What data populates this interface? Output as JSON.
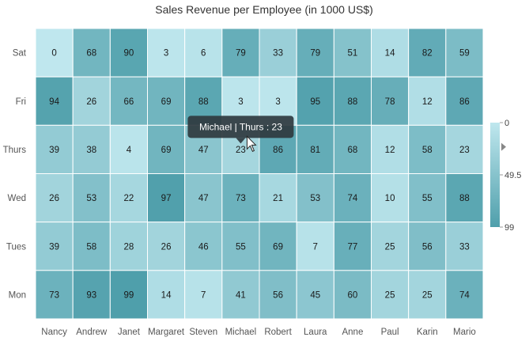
{
  "chart_data": {
    "type": "heatmap",
    "title": "Sales Revenue per Employee (in 1000 US$)",
    "x_categories": [
      "Nancy",
      "Andrew",
      "Janet",
      "Margaret",
      "Steven",
      "Michael",
      "Robert",
      "Laura",
      "Anne",
      "Paul",
      "Karin",
      "Mario"
    ],
    "y_categories": [
      "Sat",
      "Fri",
      "Thurs",
      "Wed",
      "Tues",
      "Mon"
    ],
    "values": [
      [
        0,
        68,
        90,
        3,
        6,
        79,
        33,
        79,
        51,
        14,
        82,
        59
      ],
      [
        94,
        26,
        66,
        69,
        88,
        3,
        3,
        95,
        88,
        78,
        12,
        86
      ],
      [
        39,
        38,
        4,
        69,
        47,
        23,
        86,
        81,
        68,
        12,
        58,
        23
      ],
      [
        26,
        53,
        22,
        97,
        47,
        73,
        21,
        53,
        74,
        10,
        55,
        88
      ],
      [
        39,
        58,
        28,
        26,
        46,
        55,
        69,
        7,
        77,
        25,
        56,
        33
      ],
      [
        73,
        93,
        99,
        14,
        7,
        41,
        56,
        45,
        60,
        25,
        25,
        74
      ]
    ],
    "value_range": [
      0,
      99
    ],
    "color_low": "#bfe7ee",
    "color_high": "#4f9fab",
    "legend": {
      "placement": "right",
      "labels": [
        "0",
        "49.5",
        "99"
      ]
    },
    "tooltip": {
      "text": "Michael | Thurs : 23",
      "x_category": "Michael",
      "y_category": "Thurs"
    }
  }
}
